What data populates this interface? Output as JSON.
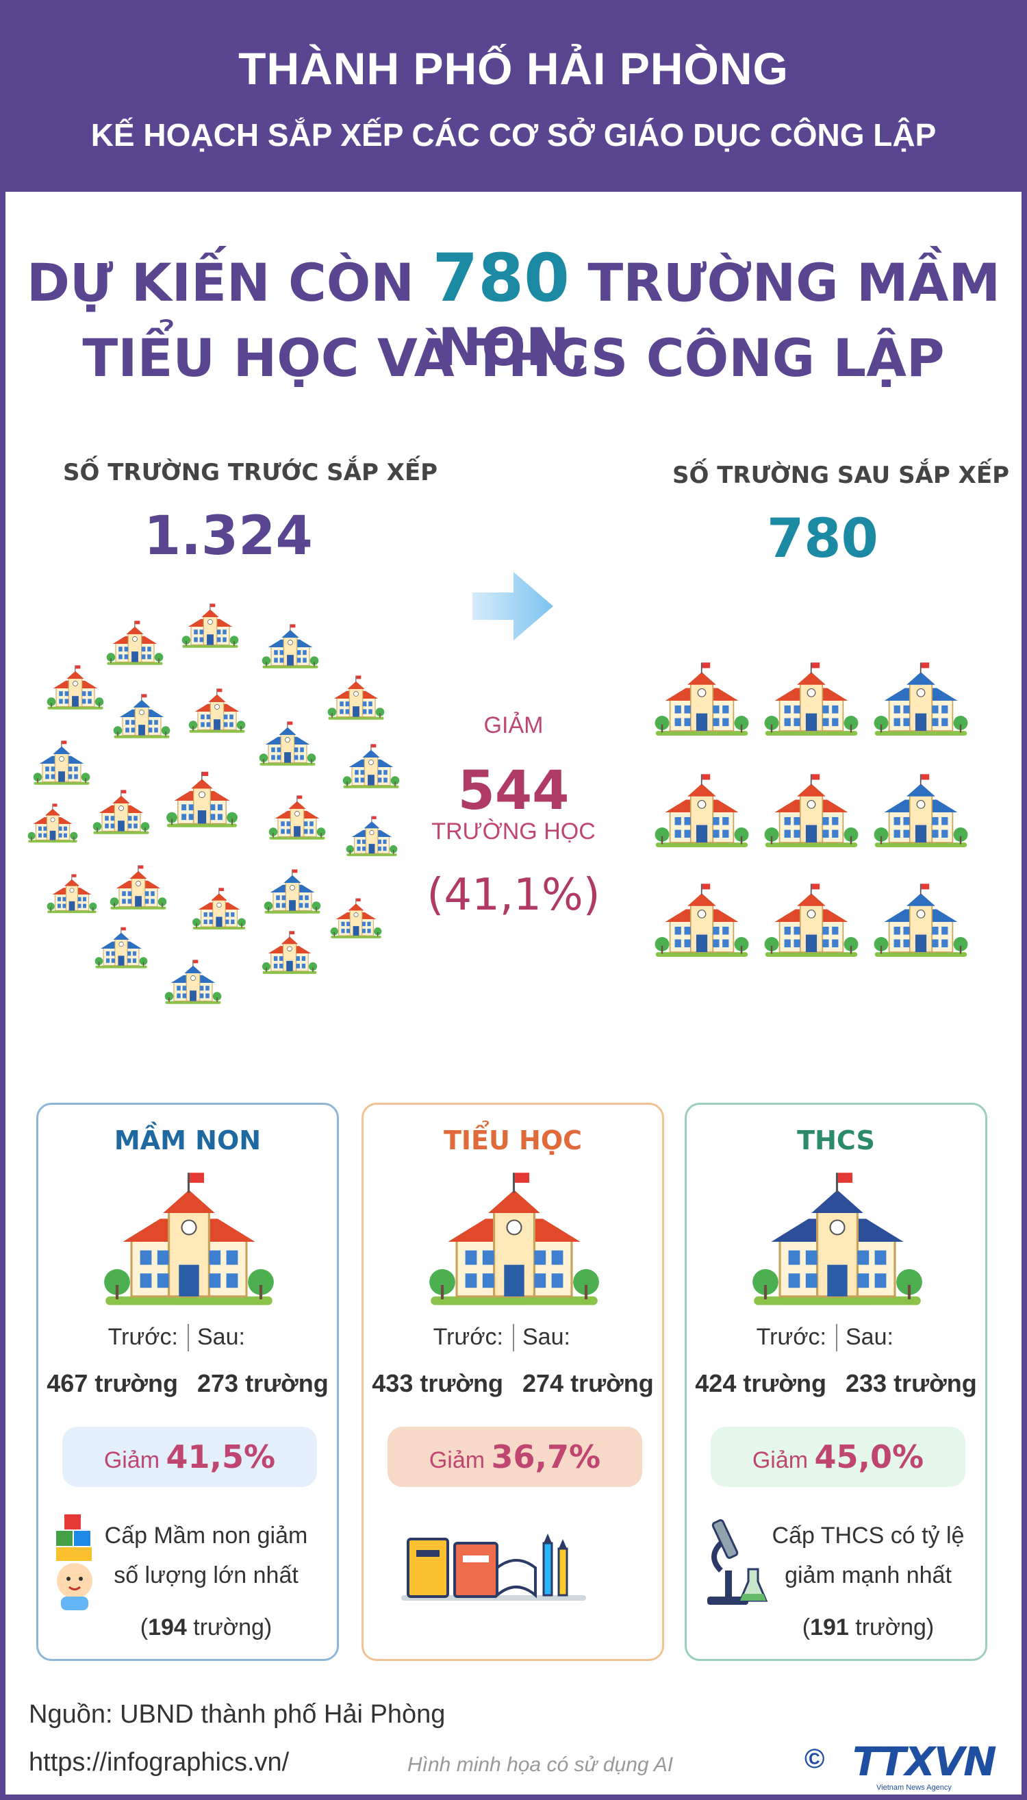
{
  "header": {
    "title": "THÀNH PHỐ HẢI PHÒNG",
    "subtitle": "KẾ HOẠCH SẮP XẾP CÁC CƠ SỞ GIÁO DỤC CÔNG LẬP"
  },
  "headline": {
    "pre": "DỰ KIẾN CÒN",
    "number": "780",
    "post": "TRƯỜNG MẦM NON,",
    "line2": "TIỂU HỌC VÀ THCS CÔNG LẬP"
  },
  "before": {
    "label": "SỐ TRƯỜNG TRƯỚC SẮP XẾP",
    "value": "1.324"
  },
  "after": {
    "label": "SỐ TRƯỜNG SAU SẮP XẾP",
    "value": "780"
  },
  "reduction": {
    "label": "GIẢM",
    "value": "544",
    "unit": "TRƯỜNG HỌC",
    "percent": "(41,1%)"
  },
  "cards": [
    {
      "title": "MẦM NON",
      "color": "#1e6aa0",
      "before_label": "Trước:",
      "after_label": "Sau:",
      "before_value": "467 trường",
      "after_value": "273 trường",
      "reduce_label": "Giảm",
      "reduce_value": "41,5%",
      "note_line1": "Cấp Mầm non giảm",
      "note_line2": "số lượng lớn nhất",
      "note_open": "(",
      "note_num": "194",
      "note_close": " trường)"
    },
    {
      "title": "TIỂU HỌC",
      "color": "#e06a3a",
      "before_label": "Trước:",
      "after_label": "Sau:",
      "before_value": "433 trường",
      "after_value": "274 trường",
      "reduce_label": "Giảm",
      "reduce_value": "36,7%"
    },
    {
      "title": "THCS",
      "color": "#2a8a6a",
      "before_label": "Trước:",
      "after_label": "Sau:",
      "before_value": "424 trường",
      "after_value": "233 trường",
      "reduce_label": "Giảm",
      "reduce_value": "45,0%",
      "note_line1": "Cấp THCS có tỷ lệ",
      "note_line2": "giảm mạnh nhất",
      "note_open": "(",
      "note_num": "191",
      "note_close": " trường)"
    }
  ],
  "footer": {
    "source": "Nguồn: UBND thành phố Hải Phòng",
    "url": "https://infographics.vn/",
    "ai_note": "Hình minh họa có sử dụng AI",
    "copyright": "©",
    "logo_text": "TTXVN",
    "logo_sub": "Vietnam News Agency"
  },
  "icons": [
    "school-building-icon",
    "arrow-right-icon",
    "toy-blocks-icon",
    "books-icon",
    "microscope-icon"
  ]
}
